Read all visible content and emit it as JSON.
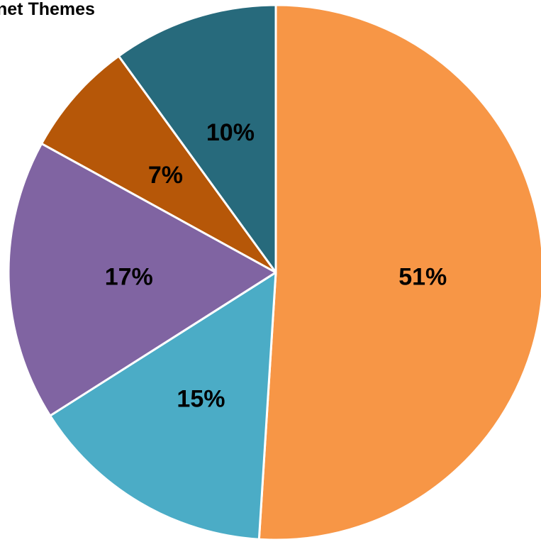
{
  "chart_data": {
    "type": "pie",
    "title": "…net Themes",
    "start_angle_deg": 0,
    "direction": "clockwise",
    "slices": [
      {
        "label": "51%",
        "value": 51,
        "color": "#F79646"
      },
      {
        "label": "15%",
        "value": 15,
        "color": "#4BACC6"
      },
      {
        "label": "17%",
        "value": 17,
        "color": "#8064A2"
      },
      {
        "label": "7%",
        "value": 7,
        "color": "#B65708"
      },
      {
        "label": "10%",
        "value": 10,
        "color": "#276A7C"
      }
    ],
    "legend": "none"
  }
}
